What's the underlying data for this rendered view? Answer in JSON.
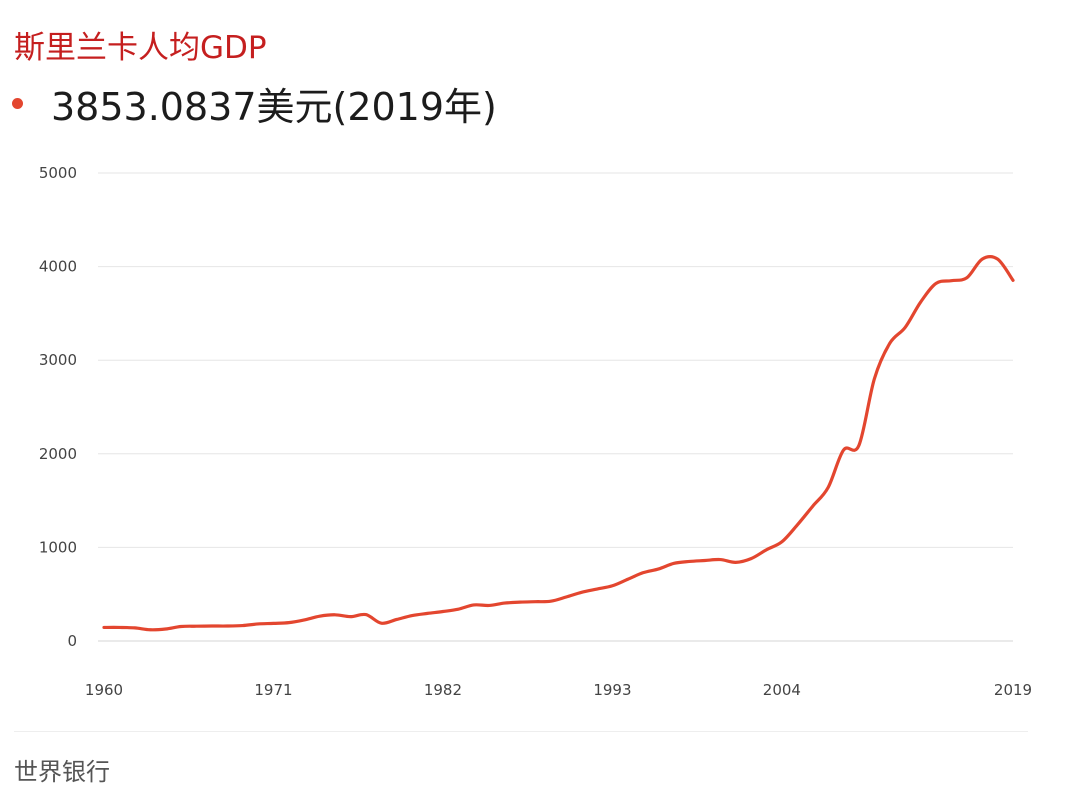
{
  "header": {
    "title": "斯里兰卡人均GDP",
    "current_value": "3853.0837美元(2019年)",
    "bullet_color": "#e3462f",
    "title_color": "#c51f1f"
  },
  "footer": {
    "source": "世界银行"
  },
  "chart_data": {
    "type": "line",
    "title": "斯里兰卡人均GDP",
    "xlabel": "",
    "ylabel": "",
    "xlim": [
      1960,
      2019
    ],
    "ylim": [
      0,
      5000
    ],
    "x_ticks": [
      1960,
      1971,
      1982,
      1993,
      2004,
      2019
    ],
    "y_ticks": [
      0,
      1000,
      2000,
      3000,
      4000,
      5000
    ],
    "grid": true,
    "line_color": "#e3462f",
    "series": [
      {
        "x": [
          1960,
          1961,
          1962,
          1963,
          1964,
          1965,
          1966,
          1967,
          1968,
          1969,
          1970,
          1971,
          1972,
          1973,
          1974,
          1975,
          1976,
          1977,
          1978,
          1979,
          1980,
          1981,
          1982,
          1983,
          1984,
          1985,
          1986,
          1987,
          1988,
          1989,
          1990,
          1991,
          1992,
          1993,
          1994,
          1995,
          1996,
          1997,
          1998,
          1999,
          2000,
          2001,
          2002,
          2003,
          2004,
          2005,
          2006,
          2007,
          2008,
          2009,
          2010,
          2011,
          2012,
          2013,
          2014,
          2015,
          2016,
          2017,
          2018,
          2019
        ],
        "values": [
          145,
          145,
          140,
          120,
          128,
          155,
          158,
          160,
          160,
          165,
          182,
          188,
          196,
          225,
          265,
          280,
          260,
          282,
          190,
          230,
          272,
          295,
          315,
          340,
          385,
          380,
          405,
          415,
          420,
          425,
          470,
          520,
          555,
          590,
          660,
          730,
          770,
          830,
          850,
          860,
          870,
          840,
          880,
          975,
          1060,
          1240,
          1440,
          1640,
          2040,
          2090,
          2800,
          3180,
          3350,
          3620,
          3820,
          3850,
          3880,
          4080,
          4080,
          3853
        ]
      }
    ]
  }
}
